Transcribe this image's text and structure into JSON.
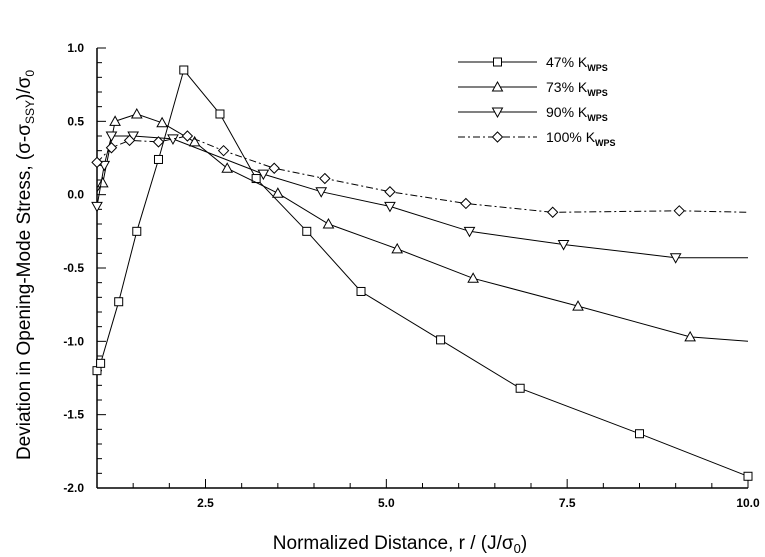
{
  "chart_data": {
    "type": "line",
    "title": "",
    "xlabel": {
      "main": "Normalized Distance, r / (J/σ",
      "sub": "0",
      "end": ")"
    },
    "ylabel": {
      "main": "Deviation in Opening-Mode Stress, (σ-σ",
      "sub1": "SSY",
      "mid": ")/σ",
      "sub2": "0"
    },
    "xlim": [
      1.0,
      10.0
    ],
    "ylim": [
      -2.0,
      1.0
    ],
    "xticks": [
      2.5,
      5.0,
      7.5,
      10.0
    ],
    "xtick_labels": [
      "2.5",
      "5.0",
      "7.5",
      "10.0"
    ],
    "yticks": [
      -2.0,
      -1.5,
      -1.0,
      -0.5,
      0.0,
      0.5,
      1.0
    ],
    "ytick_labels": [
      "-2.0",
      "-1.5",
      "-1.0",
      "-0.5",
      "0.0",
      "0.5",
      "1.0"
    ],
    "grid": false,
    "legend_position": "top-right",
    "series": [
      {
        "name": "47% K",
        "name_sub": "WPS",
        "marker": "square",
        "dash": "solid",
        "x": [
          1.0,
          1.05,
          1.3,
          1.55,
          1.85,
          2.2,
          2.7,
          3.2,
          3.9,
          4.65,
          5.75,
          6.85,
          8.5,
          10.0
        ],
        "y": [
          -1.2,
          -1.15,
          -0.73,
          -0.25,
          0.24,
          0.85,
          0.55,
          0.11,
          -0.25,
          -0.66,
          -0.99,
          -1.32,
          -1.63,
          -1.92
        ]
      },
      {
        "name": "73% K",
        "name_sub": "WPS",
        "marker": "triangle-up",
        "dash": "solid",
        "x": [
          1.0,
          1.08,
          1.25,
          1.55,
          1.9,
          2.35,
          2.8,
          3.5,
          4.2,
          5.15,
          6.2,
          7.65,
          9.2,
          10.0
        ],
        "y": [
          0.02,
          0.08,
          0.5,
          0.55,
          0.49,
          0.36,
          0.18,
          0.01,
          -0.2,
          -0.37,
          -0.57,
          -0.76,
          -0.97,
          -1.0
        ],
        "markers_at": [
          1,
          2,
          3,
          4,
          5,
          6,
          7,
          8,
          9,
          10,
          11,
          12
        ]
      },
      {
        "name": "90% K",
        "name_sub": "WPS",
        "marker": "triangle-down",
        "dash": "solid",
        "x": [
          1.0,
          1.1,
          1.2,
          1.5,
          2.05,
          3.3,
          4.1,
          5.05,
          6.15,
          7.45,
          9.0,
          10.0
        ],
        "y": [
          -0.08,
          0.2,
          0.4,
          0.4,
          0.38,
          0.14,
          0.02,
          -0.08,
          -0.25,
          -0.34,
          -0.43,
          -0.43
        ],
        "markers_at": [
          0,
          1,
          2,
          3,
          4,
          5,
          6,
          7,
          8,
          9,
          10
        ]
      },
      {
        "name": "100% K",
        "name_sub": "WPS",
        "marker": "diamond",
        "dash": "dashdot",
        "x": [
          1.0,
          1.2,
          1.45,
          1.85,
          2.25,
          2.75,
          3.45,
          4.15,
          5.05,
          6.1,
          7.3,
          9.05,
          10.0
        ],
        "y": [
          0.22,
          0.32,
          0.37,
          0.36,
          0.4,
          0.3,
          0.18,
          0.11,
          0.02,
          -0.06,
          -0.12,
          -0.11,
          -0.12
        ],
        "markers_at": [
          0,
          1,
          2,
          3,
          4,
          5,
          6,
          7,
          8,
          9,
          10,
          11
        ]
      }
    ]
  }
}
